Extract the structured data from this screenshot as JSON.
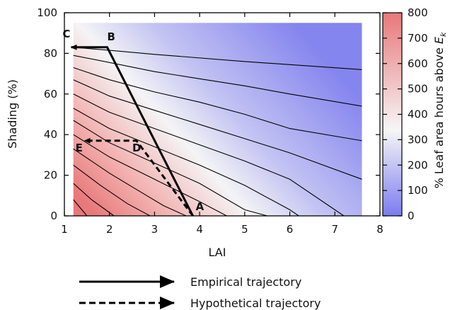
{
  "chart_data": {
    "type": "heatmap",
    "xlabel": "LAI",
    "ylabel": "Shading (%)",
    "xlim": [
      1,
      8
    ],
    "ylim": [
      0,
      100
    ],
    "x_ticks": [
      "1",
      "2",
      "3",
      "4",
      "5",
      "6",
      "7",
      "8"
    ],
    "y_ticks": [
      "0",
      "20",
      "40",
      "60",
      "80",
      "100"
    ],
    "data_extent": {
      "x": [
        1.2,
        7.6
      ],
      "y": [
        0,
        95
      ]
    },
    "colorbar": {
      "label_prefix": "% Leaf area hours above ",
      "label_symbol": "E",
      "label_subscript": "k",
      "min": 0,
      "max": 800,
      "ticks": [
        "0",
        "100",
        "200",
        "300",
        "400",
        "500",
        "600",
        "700",
        "800"
      ],
      "colors": {
        "low": "#7b7bf0",
        "mid": "#f6f6f6",
        "high": "#e8787a"
      }
    },
    "contours": [
      {
        "points": [
          [
            1.2,
            83.0
          ],
          [
            2.0,
            81.5
          ],
          [
            3.0,
            79.5
          ],
          [
            5.0,
            76.0
          ],
          [
            7.6,
            72.0
          ]
        ]
      },
      {
        "points": [
          [
            1.2,
            79.0
          ],
          [
            2.0,
            75.5
          ],
          [
            3.0,
            71.0
          ],
          [
            4.0,
            67.5
          ],
          [
            5.0,
            64.0
          ],
          [
            6.0,
            60.0
          ],
          [
            7.6,
            54.0
          ]
        ]
      },
      {
        "points": [
          [
            1.2,
            73.0
          ],
          [
            2.0,
            67.0
          ],
          [
            3.0,
            61.0
          ],
          [
            4.0,
            56.0
          ],
          [
            5.0,
            50.0
          ],
          [
            6.0,
            43.0
          ],
          [
            7.6,
            37.0
          ]
        ]
      },
      {
        "points": [
          [
            1.2,
            67.0
          ],
          [
            2.0,
            59.0
          ],
          [
            3.0,
            52.0
          ],
          [
            4.0,
            45.0
          ],
          [
            5.0,
            38.0
          ],
          [
            6.0,
            31.0
          ],
          [
            7.6,
            18.0
          ]
        ]
      },
      {
        "points": [
          [
            1.2,
            60.0
          ],
          [
            2.0,
            51.0
          ],
          [
            3.0,
            43.0
          ],
          [
            4.0,
            35.0
          ],
          [
            5.0,
            27.0
          ],
          [
            6.0,
            18.0
          ],
          [
            7.2,
            0.0
          ]
        ]
      },
      {
        "points": [
          [
            1.2,
            53.0
          ],
          [
            2.0,
            43.0
          ],
          [
            3.0,
            34.0
          ],
          [
            4.0,
            25.0
          ],
          [
            5.0,
            15.0
          ],
          [
            6.0,
            3.0
          ],
          [
            6.2,
            0.0
          ]
        ]
      },
      {
        "points": [
          [
            1.2,
            47.0
          ],
          [
            2.0,
            36.0
          ],
          [
            3.0,
            26.0
          ],
          [
            4.0,
            16.0
          ],
          [
            5.0,
            3.0
          ],
          [
            5.5,
            0.0
          ]
        ]
      },
      {
        "points": [
          [
            1.2,
            40.0
          ],
          [
            2.0,
            29.0
          ],
          [
            3.0,
            18.0
          ],
          [
            4.0,
            7.0
          ],
          [
            4.6,
            0.0
          ]
        ]
      },
      {
        "points": [
          [
            1.2,
            33.0
          ],
          [
            2.0,
            21.0
          ],
          [
            2.6,
            13.0
          ],
          [
            3.2,
            5.0
          ],
          [
            3.7,
            0.0
          ]
        ]
      },
      {
        "points": [
          [
            1.2,
            25.0
          ],
          [
            1.8,
            15.0
          ],
          [
            2.4,
            6.0
          ],
          [
            2.9,
            0.0
          ]
        ]
      },
      {
        "points": [
          [
            1.2,
            16.0
          ],
          [
            1.6,
            8.0
          ],
          [
            2.1,
            0.0
          ]
        ]
      },
      {
        "points": [
          [
            1.2,
            8.0
          ],
          [
            1.5,
            0.0
          ]
        ]
      }
    ],
    "trajectories": [
      {
        "style": "solid",
        "points": [
          [
            3.85,
            0.0
          ],
          [
            1.95,
            83.0
          ],
          [
            1.15,
            83.0
          ]
        ]
      },
      {
        "style": "dashed",
        "points": [
          [
            3.85,
            0.0
          ],
          [
            2.6,
            37.0
          ],
          [
            1.45,
            37.0
          ]
        ]
      }
    ],
    "points": [
      {
        "label": "A",
        "x": 3.85,
        "y": 0.0
      },
      {
        "label": "B",
        "x": 1.95,
        "y": 83.0
      },
      {
        "label": "C",
        "x": 1.15,
        "y": 83.0
      },
      {
        "label": "D",
        "x": 2.6,
        "y": 37.0
      },
      {
        "label": "E",
        "x": 1.45,
        "y": 37.0
      }
    ],
    "legend": [
      {
        "label": "Empirical trajectory",
        "style": "solid"
      },
      {
        "label": "Hypothetical trajectory",
        "style": "dashed"
      }
    ]
  }
}
